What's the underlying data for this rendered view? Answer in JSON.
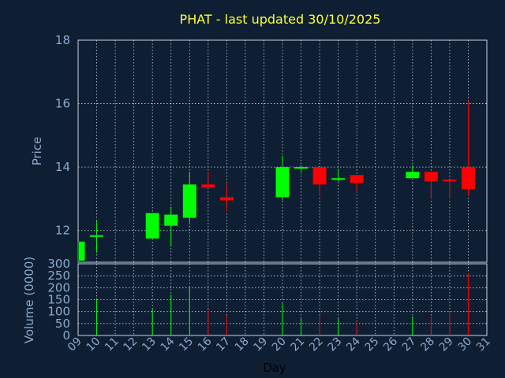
{
  "title": "PHAT - last updated 30/10/2025",
  "colors": {
    "background": "#0f1f33",
    "up": "#00ff00",
    "down": "#ff0000",
    "title": "#ffff33",
    "axis_text": "#8aa9cc",
    "grid": "#c8d2e0"
  },
  "chart_data": [
    {
      "type": "candlestick",
      "ylabel": "Price",
      "ylim": [
        11,
        18
      ],
      "yticks": [
        12,
        14,
        16,
        18
      ],
      "grid": true,
      "candles": [
        {
          "day": "09",
          "open": 11.05,
          "high": 11.65,
          "low": 11.0,
          "close": 11.65
        },
        {
          "day": "10",
          "open": 11.8,
          "high": 12.3,
          "low": 11.3,
          "close": 11.85
        },
        {
          "day": "13",
          "open": 11.75,
          "high": 12.55,
          "low": 11.75,
          "close": 12.55
        },
        {
          "day": "14",
          "open": 12.15,
          "high": 12.75,
          "low": 11.5,
          "close": 12.5
        },
        {
          "day": "15",
          "open": 12.4,
          "high": 13.85,
          "low": 12.25,
          "close": 13.45
        },
        {
          "day": "16",
          "open": 13.45,
          "high": 13.85,
          "low": 13.35,
          "close": 13.35
        },
        {
          "day": "17",
          "open": 13.05,
          "high": 13.45,
          "low": 12.6,
          "close": 12.95
        },
        {
          "day": "20",
          "open": 13.05,
          "high": 14.35,
          "low": 12.95,
          "close": 14.0
        },
        {
          "day": "21",
          "open": 13.95,
          "high": 14.05,
          "low": 13.85,
          "close": 14.0
        },
        {
          "day": "22",
          "open": 14.0,
          "high": 14.0,
          "low": 13.1,
          "close": 13.45
        },
        {
          "day": "23",
          "open": 13.6,
          "high": 13.95,
          "low": 13.55,
          "close": 13.65
        },
        {
          "day": "24",
          "open": 13.75,
          "high": 13.75,
          "low": 13.2,
          "close": 13.5
        },
        {
          "day": "27",
          "open": 13.65,
          "high": 14.05,
          "low": 13.65,
          "close": 13.85
        },
        {
          "day": "28",
          "open": 13.85,
          "high": 13.85,
          "low": 13.0,
          "close": 13.55
        },
        {
          "day": "29",
          "open": 13.6,
          "high": 13.6,
          "low": 13.0,
          "close": 13.55
        },
        {
          "day": "30",
          "open": 14.0,
          "high": 16.1,
          "low": 13.1,
          "close": 13.3
        }
      ]
    },
    {
      "type": "bar",
      "ylabel": "Volume (0000)",
      "xlabel": "Day",
      "ylim": [
        0,
        300
      ],
      "yticks": [
        0,
        50,
        100,
        150,
        200,
        250,
        300
      ],
      "grid": true,
      "categories": [
        "09",
        "10",
        "11",
        "12",
        "13",
        "14",
        "15",
        "16",
        "17",
        "18",
        "19",
        "20",
        "21",
        "22",
        "23",
        "24",
        "25",
        "26",
        "27",
        "28",
        "29",
        "30",
        "31"
      ],
      "values": [
        {
          "day": "10",
          "volume": 150,
          "dir": "up"
        },
        {
          "day": "13",
          "volume": 110,
          "dir": "up"
        },
        {
          "day": "14",
          "volume": 170,
          "dir": "up"
        },
        {
          "day": "15",
          "volume": 200,
          "dir": "up"
        },
        {
          "day": "16",
          "volume": 110,
          "dir": "down"
        },
        {
          "day": "17",
          "volume": 85,
          "dir": "down"
        },
        {
          "day": "20",
          "volume": 135,
          "dir": "up"
        },
        {
          "day": "21",
          "volume": 70,
          "dir": "up"
        },
        {
          "day": "22",
          "volume": 80,
          "dir": "down"
        },
        {
          "day": "23",
          "volume": 70,
          "dir": "up"
        },
        {
          "day": "24",
          "volume": 55,
          "dir": "down"
        },
        {
          "day": "27",
          "volume": 80,
          "dir": "up"
        },
        {
          "day": "28",
          "volume": 80,
          "dir": "down"
        },
        {
          "day": "29",
          "volume": 100,
          "dir": "down"
        },
        {
          "day": "30",
          "volume": 260,
          "dir": "down"
        }
      ]
    }
  ]
}
